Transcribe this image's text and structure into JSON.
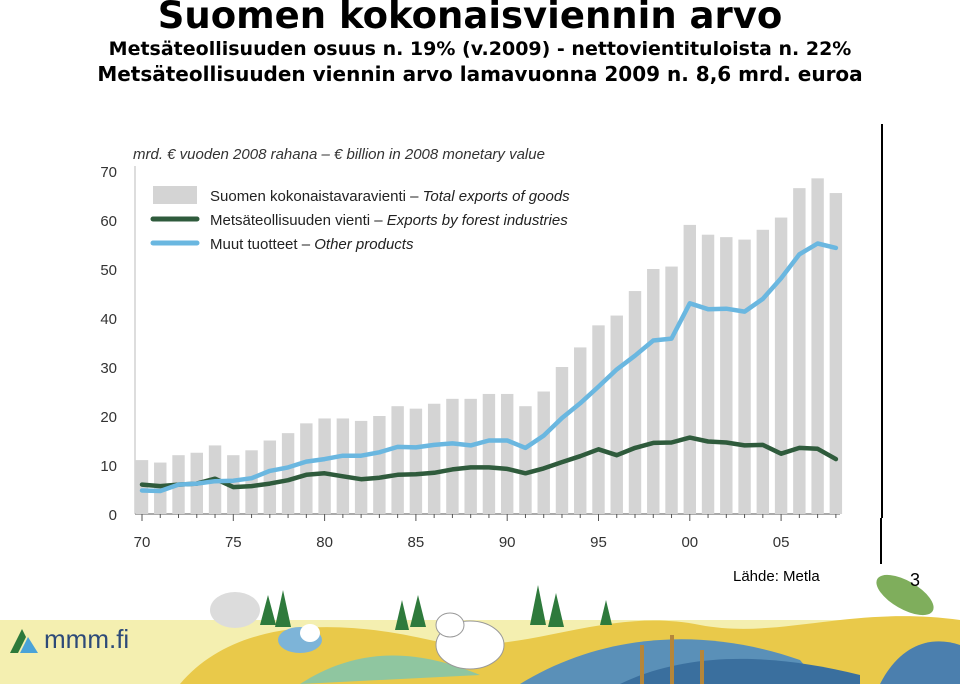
{
  "title": "Suomen kokonaisviennin arvo",
  "subtitle_1": "Metsäteollisuuden osuus n. 19% (v.2009) - nettovientituloista n. 22%",
  "subtitle_2": "Metsäteollisuuden viennin arvo lamavuonna 2009 n. 8,6 mrd. euroa",
  "source": "Lähde: Metla",
  "page_number": "3",
  "logo_text": "mmm.fi",
  "colors": {
    "total_bars": "#d4d4d4",
    "forest_line": "#2f5b3c",
    "other_line": "#6ab7e0"
  },
  "chart_data": {
    "type": "bar",
    "ylabel": "mrd. € vuoden 2008 rahana – € billion in 2008 monetary value",
    "ylim": [
      0,
      70
    ],
    "yticks": [
      "0",
      "10",
      "20",
      "30",
      "40",
      "50",
      "60",
      "70"
    ],
    "xticks": [
      "70",
      "75",
      "80",
      "85",
      "90",
      "95",
      "00",
      "05"
    ],
    "grid": false,
    "legend_position": "top-left",
    "legend": [
      {
        "fi": "Suomen kokonaistavaravienti",
        "en": "Total exports of goods"
      },
      {
        "fi": "Metsäteollisuuden vienti",
        "en": "Exports by forest industries"
      },
      {
        "fi": "Muut tuotteet",
        "en": "Other products"
      }
    ],
    "x": [
      1970,
      1971,
      1972,
      1973,
      1974,
      1975,
      1976,
      1977,
      1978,
      1979,
      1980,
      1981,
      1982,
      1983,
      1984,
      1985,
      1986,
      1987,
      1988,
      1989,
      1990,
      1991,
      1992,
      1993,
      1994,
      1995,
      1996,
      1997,
      1998,
      1999,
      2000,
      2001,
      2002,
      2003,
      2004,
      2005,
      2006,
      2007,
      2008
    ],
    "series": [
      {
        "name": "Suomen kokonaistavaravienti – Total exports of goods",
        "type": "bar",
        "values": [
          11,
          10.5,
          12,
          12.5,
          14,
          12,
          13,
          15,
          16.5,
          18.5,
          19.5,
          19.5,
          19,
          20,
          22,
          21.5,
          22.5,
          23.5,
          23.5,
          24.5,
          24.5,
          22,
          25,
          30,
          34,
          38.5,
          40.5,
          45.5,
          50,
          50.5,
          59,
          57,
          56.5,
          56,
          58,
          60.5,
          66.5,
          68.5,
          65.5
        ]
      },
      {
        "name": "Metsäteollisuuden vienti – Exports by forest industries",
        "type": "line",
        "values": [
          6,
          5.7,
          6,
          6.2,
          7.2,
          5.5,
          5.7,
          6.2,
          6.9,
          8,
          8.3,
          7.7,
          7.1,
          7.4,
          8,
          8.1,
          8.4,
          9.1,
          9.5,
          9.5,
          9.2,
          8.3,
          9.3,
          10.6,
          11.8,
          13.2,
          12,
          13.5,
          14.5,
          14.6,
          15.6,
          14.8,
          14.6,
          14,
          14.1,
          12.3,
          13.5,
          13.3,
          11.2
        ]
      },
      {
        "name": "Muut tuotteet – Other products",
        "type": "line",
        "values": [
          4.8,
          4.7,
          6,
          6.2,
          6.7,
          6.8,
          7.3,
          8.8,
          9.5,
          10.7,
          11.2,
          11.9,
          11.9,
          12.6,
          13.7,
          13.6,
          14.1,
          14.4,
          14,
          15,
          15,
          13.5,
          16,
          19.6,
          22.6,
          26,
          29.5,
          32.3,
          35.4,
          35.8,
          43,
          41.8,
          41.9,
          41.3,
          43.9,
          48.1,
          53,
          55.2,
          54.3
        ]
      }
    ]
  }
}
